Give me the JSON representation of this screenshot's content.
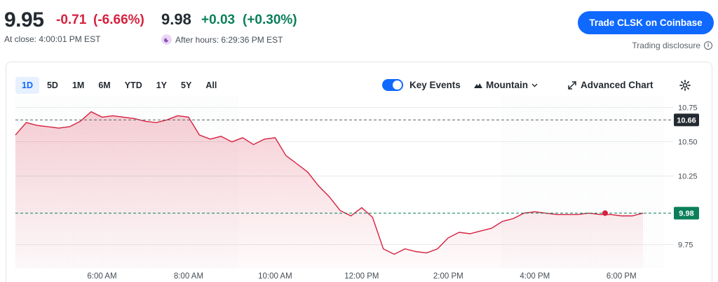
{
  "quote": {
    "price": "9.95",
    "change": "-0.71",
    "change_pct": "(-6.66%)",
    "close_label": "At close: 4:00:01 PM EST",
    "ah_price": "9.98",
    "ah_change": "+0.03",
    "ah_change_pct": "(+0.30%)",
    "ah_label": "After hours: 6:29:36 PM EST"
  },
  "actions": {
    "trade_button": "Trade CLSK on Coinbase",
    "disclosure": "Trading disclosure"
  },
  "controls": {
    "ranges": [
      "1D",
      "5D",
      "1M",
      "6M",
      "YTD",
      "1Y",
      "5Y",
      "All"
    ],
    "active_range": "1D",
    "key_events_label": "Key Events",
    "key_events_on": true,
    "chart_type_label": "Mountain",
    "advanced_label": "Advanced Chart"
  },
  "colors": {
    "down": "#d6213f",
    "up": "#0a7f5a",
    "accent": "#0f69ff"
  },
  "chart_data": {
    "type": "area",
    "y_ticks": [
      "10.75",
      "10.50",
      "10.25",
      "9.75"
    ],
    "x_ticks": [
      "6:00 AM",
      "8:00 AM",
      "10:00 AM",
      "12:00 PM",
      "2:00 PM",
      "4:00 PM",
      "6:00 PM"
    ],
    "ylim": [
      9.58,
      10.83
    ],
    "prev_close": "10.66",
    "last": "9.98",
    "series": [
      {
        "x": [
          "4:00",
          "4:15",
          "4:30",
          "4:45",
          "5:00",
          "5:15",
          "5:30",
          "5:45",
          "6:00",
          "6:15",
          "6:30",
          "6:45",
          "7:00",
          "7:15",
          "7:30",
          "7:45",
          "8:00",
          "8:15",
          "8:30",
          "8:45",
          "9:00",
          "9:15",
          "9:30",
          "9:45",
          "10:00",
          "10:15",
          "10:30",
          "10:45",
          "11:00",
          "11:15",
          "11:30",
          "11:45",
          "12:00",
          "12:15",
          "12:30",
          "12:45",
          "13:00",
          "13:15",
          "13:30",
          "13:45",
          "14:00",
          "14:15",
          "14:30",
          "14:45",
          "15:00",
          "15:15",
          "15:30",
          "15:45",
          "16:00",
          "16:15",
          "16:30",
          "16:45",
          "17:00",
          "17:15",
          "17:30",
          "17:45",
          "18:00",
          "18:15",
          "18:30"
        ],
        "values": [
          10.55,
          10.64,
          10.62,
          10.61,
          10.6,
          10.61,
          10.65,
          10.72,
          10.68,
          10.69,
          10.68,
          10.67,
          10.65,
          10.64,
          10.66,
          10.69,
          10.68,
          10.55,
          10.52,
          10.54,
          10.5,
          10.53,
          10.48,
          10.52,
          10.53,
          10.4,
          10.34,
          10.28,
          10.18,
          10.1,
          10.0,
          9.96,
          10.02,
          9.95,
          9.72,
          9.68,
          9.72,
          9.7,
          9.69,
          9.72,
          9.8,
          9.84,
          9.83,
          9.85,
          9.87,
          9.92,
          9.94,
          9.98,
          9.99,
          9.98,
          9.97,
          9.97,
          9.97,
          9.98,
          9.97,
          9.97,
          9.96,
          9.96,
          9.98
        ]
      }
    ]
  }
}
